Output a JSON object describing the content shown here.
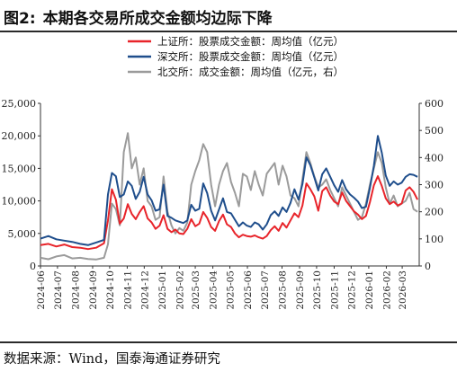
{
  "figure": {
    "label": "图2:",
    "title": "本期各交易所成交金额均边际下降",
    "source_label": "数据来源：",
    "source_text": "Wind，国泰海通证券研究"
  },
  "colors": {
    "sse": "#e8242a",
    "szse": "#1f4e8c",
    "bse": "#9b9b9b"
  },
  "chart_data": {
    "type": "line",
    "title": "",
    "xlabel": "",
    "ylabel": "",
    "y_left_lim": [
      0,
      25000
    ],
    "y_left_ticks": [
      "0",
      "5,000",
      "10,000",
      "15,000",
      "20,000",
      "25,000"
    ],
    "y_right_lim": [
      0,
      600
    ],
    "y_right_ticks": [
      "0",
      "100",
      "200",
      "300",
      "400",
      "500",
      "600"
    ],
    "x_lim": [
      "2024-06-01",
      "2026-03-31"
    ],
    "x_ticks": [
      "2024-06",
      "2024-07",
      "2024-08",
      "2024-09",
      "2024-10",
      "2024-11",
      "2024-12",
      "2025-01",
      "2025-02",
      "2025-03",
      "2025-04",
      "2025-05",
      "2025-06",
      "2025-07",
      "2025-08",
      "2025-09",
      "2025-10",
      "2025-11",
      "2025-12",
      "2026-01",
      "2026-02",
      "2026-03"
    ],
    "grid": false,
    "legend_position": "top-center",
    "series": [
      {
        "name": "上证所：股票成交金额：周均值（亿元）",
        "axis": "left",
        "color_key": "sse",
        "x": [
          "2024-06-01",
          "2024-06-15",
          "2024-06-29",
          "2024-07-13",
          "2024-07-27",
          "2024-08-10",
          "2024-08-24",
          "2024-09-07",
          "2024-09-21",
          "2024-09-28",
          "2024-10-05",
          "2024-10-12",
          "2024-10-19",
          "2024-10-26",
          "2024-11-02",
          "2024-11-09",
          "2024-11-16",
          "2024-11-23",
          "2024-11-30",
          "2024-12-07",
          "2024-12-14",
          "2024-12-21",
          "2024-12-28",
          "2025-01-04",
          "2025-01-11",
          "2025-01-18",
          "2025-01-25",
          "2025-02-01",
          "2025-02-08",
          "2025-02-15",
          "2025-02-22",
          "2025-03-01",
          "2025-03-08",
          "2025-03-15",
          "2025-03-22",
          "2025-03-29",
          "2025-04-05",
          "2025-04-12",
          "2025-04-19",
          "2025-04-26",
          "2025-05-03",
          "2025-05-10",
          "2025-05-17",
          "2025-05-24",
          "2025-05-31",
          "2025-06-07",
          "2025-06-14",
          "2025-06-21",
          "2025-06-28",
          "2025-07-05",
          "2025-07-12",
          "2025-07-19",
          "2025-07-26",
          "2025-08-02",
          "2025-08-09",
          "2025-08-16",
          "2025-08-23",
          "2025-08-30",
          "2025-09-06",
          "2025-09-13",
          "2025-09-20",
          "2025-09-27",
          "2025-10-04",
          "2025-10-11",
          "2025-10-18",
          "2025-10-25",
          "2025-11-01",
          "2025-11-08",
          "2025-11-15",
          "2025-11-22",
          "2025-11-29",
          "2025-12-06",
          "2025-12-13",
          "2025-12-20",
          "2025-12-27",
          "2026-01-03",
          "2026-01-10",
          "2026-01-17",
          "2026-01-24",
          "2026-01-31",
          "2026-02-07",
          "2026-02-14",
          "2026-02-21",
          "2026-02-28",
          "2026-03-07",
          "2026-03-14",
          "2026-03-21",
          "2026-03-28"
        ],
        "values": [
          3200,
          3400,
          3000,
          3300,
          2900,
          2800,
          2600,
          2800,
          3500,
          7000,
          11800,
          10200,
          6500,
          7300,
          9500,
          8000,
          7200,
          8300,
          9200,
          7300,
          6700,
          5700,
          6200,
          7800,
          5700,
          5200,
          5600,
          5000,
          4900,
          5700,
          7200,
          6100,
          6500,
          8300,
          7400,
          6000,
          5400,
          6900,
          7900,
          6400,
          6000,
          5000,
          4400,
          4800,
          4600,
          4500,
          4700,
          4400,
          4200,
          4600,
          5500,
          6100,
          5400,
          6600,
          5900,
          7000,
          8100,
          7500,
          9300,
          12700,
          11800,
          10700,
          8500,
          11500,
          12100,
          10800,
          9900,
          9500,
          11300,
          10000,
          9200,
          8400,
          7900,
          7200,
          7700,
          9800,
          12400,
          13800,
          12300,
          10400,
          9500,
          9900,
          9300,
          9600,
          11600,
          12100,
          11400,
          10200
        ]
      },
      {
        "name": "深交所：股票成交金额：周均值（亿元）",
        "axis": "left",
        "color_key": "szse",
        "x": [
          "2024-06-01",
          "2024-06-15",
          "2024-06-29",
          "2024-07-13",
          "2024-07-27",
          "2024-08-10",
          "2024-08-24",
          "2024-09-07",
          "2024-09-21",
          "2024-09-28",
          "2024-10-05",
          "2024-10-12",
          "2024-10-19",
          "2024-10-26",
          "2024-11-02",
          "2024-11-09",
          "2024-11-16",
          "2024-11-23",
          "2024-11-30",
          "2024-12-07",
          "2024-12-14",
          "2024-12-21",
          "2024-12-28",
          "2025-01-04",
          "2025-01-11",
          "2025-01-18",
          "2025-01-25",
          "2025-02-01",
          "2025-02-08",
          "2025-02-15",
          "2025-02-22",
          "2025-03-01",
          "2025-03-08",
          "2025-03-15",
          "2025-03-22",
          "2025-03-29",
          "2025-04-05",
          "2025-04-12",
          "2025-04-19",
          "2025-04-26",
          "2025-05-03",
          "2025-05-10",
          "2025-05-17",
          "2025-05-24",
          "2025-05-31",
          "2025-06-07",
          "2025-06-14",
          "2025-06-21",
          "2025-06-28",
          "2025-07-05",
          "2025-07-12",
          "2025-07-19",
          "2025-07-26",
          "2025-08-02",
          "2025-08-09",
          "2025-08-16",
          "2025-08-23",
          "2025-08-30",
          "2025-09-06",
          "2025-09-13",
          "2025-09-20",
          "2025-09-27",
          "2025-10-04",
          "2025-10-11",
          "2025-10-18",
          "2025-10-25",
          "2025-11-01",
          "2025-11-08",
          "2025-11-15",
          "2025-11-22",
          "2025-11-29",
          "2025-12-06",
          "2025-12-13",
          "2025-12-20",
          "2025-12-27",
          "2026-01-03",
          "2026-01-10",
          "2026-01-17",
          "2026-01-24",
          "2026-01-31",
          "2026-02-07",
          "2026-02-14",
          "2026-02-21",
          "2026-02-28",
          "2026-03-07",
          "2026-03-14",
          "2026-03-21",
          "2026-03-28"
        ],
        "values": [
          4200,
          4600,
          4100,
          3900,
          3700,
          3400,
          3200,
          3600,
          4000,
          11000,
          14300,
          13800,
          10600,
          11000,
          13000,
          12300,
          10300,
          11400,
          13700,
          11000,
          10100,
          8500,
          8700,
          12500,
          7700,
          7400,
          7000,
          6800,
          6600,
          7000,
          9400,
          8500,
          8800,
          12700,
          11200,
          8500,
          7000,
          8700,
          10400,
          8300,
          8100,
          7100,
          6100,
          6700,
          6200,
          6000,
          6700,
          6400,
          5600,
          6400,
          7800,
          8400,
          7700,
          9000,
          8300,
          9700,
          11800,
          10200,
          12600,
          16700,
          15500,
          13600,
          11600,
          14100,
          15000,
          13700,
          12400,
          11400,
          13200,
          11800,
          11000,
          10500,
          9900,
          8900,
          9100,
          12000,
          15400,
          20000,
          17400,
          13900,
          12300,
          13000,
          12500,
          12800,
          13700,
          14100,
          14000,
          13700
        ]
      },
      {
        "name": "北交所：成交金额：周均值（亿元，右）",
        "axis": "right",
        "color_key": "bse",
        "x": [
          "2024-06-01",
          "2024-06-15",
          "2024-06-29",
          "2024-07-13",
          "2024-07-27",
          "2024-08-10",
          "2024-08-24",
          "2024-09-07",
          "2024-09-21",
          "2024-09-28",
          "2024-10-05",
          "2024-10-12",
          "2024-10-19",
          "2024-10-26",
          "2024-11-02",
          "2024-11-09",
          "2024-11-16",
          "2024-11-23",
          "2024-11-30",
          "2024-12-07",
          "2024-12-14",
          "2024-12-21",
          "2024-12-28",
          "2025-01-04",
          "2025-01-11",
          "2025-01-18",
          "2025-01-25",
          "2025-02-01",
          "2025-02-08",
          "2025-02-15",
          "2025-02-22",
          "2025-03-01",
          "2025-03-08",
          "2025-03-15",
          "2025-03-22",
          "2025-03-29",
          "2025-04-05",
          "2025-04-12",
          "2025-04-19",
          "2025-04-26",
          "2025-05-03",
          "2025-05-10",
          "2025-05-17",
          "2025-05-24",
          "2025-05-31",
          "2025-06-07",
          "2025-06-14",
          "2025-06-21",
          "2025-06-28",
          "2025-07-05",
          "2025-07-12",
          "2025-07-19",
          "2025-07-26",
          "2025-08-02",
          "2025-08-09",
          "2025-08-16",
          "2025-08-23",
          "2025-08-30",
          "2025-09-06",
          "2025-09-13",
          "2025-09-20",
          "2025-09-27",
          "2025-10-04",
          "2025-10-11",
          "2025-10-18",
          "2025-10-25",
          "2025-11-01",
          "2025-11-08",
          "2025-11-15",
          "2025-11-22",
          "2025-11-29",
          "2025-12-06",
          "2025-12-13",
          "2025-12-20",
          "2025-12-27",
          "2026-01-03",
          "2026-01-10",
          "2026-01-17",
          "2026-01-24",
          "2026-01-31",
          "2026-02-07",
          "2026-02-14",
          "2026-02-21",
          "2026-02-28",
          "2026-03-07",
          "2026-03-14",
          "2026-03-21",
          "2026-03-28"
        ],
        "values": [
          30,
          25,
          35,
          40,
          28,
          30,
          26,
          24,
          30,
          80,
          230,
          210,
          150,
          420,
          490,
          360,
          400,
          300,
          360,
          240,
          220,
          170,
          180,
          330,
          200,
          150,
          120,
          140,
          130,
          160,
          300,
          350,
          390,
          450,
          420,
          300,
          220,
          300,
          350,
          380,
          310,
          270,
          220,
          340,
          330,
          280,
          350,
          300,
          260,
          340,
          360,
          380,
          300,
          370,
          330,
          260,
          250,
          220,
          320,
          420,
          380,
          330,
          290,
          300,
          320,
          280,
          250,
          220,
          290,
          260,
          230,
          200,
          170,
          180,
          230,
          300,
          360,
          420,
          380,
          290,
          230,
          260,
          220,
          230,
          240,
          270,
          210,
          200
        ]
      }
    ]
  }
}
